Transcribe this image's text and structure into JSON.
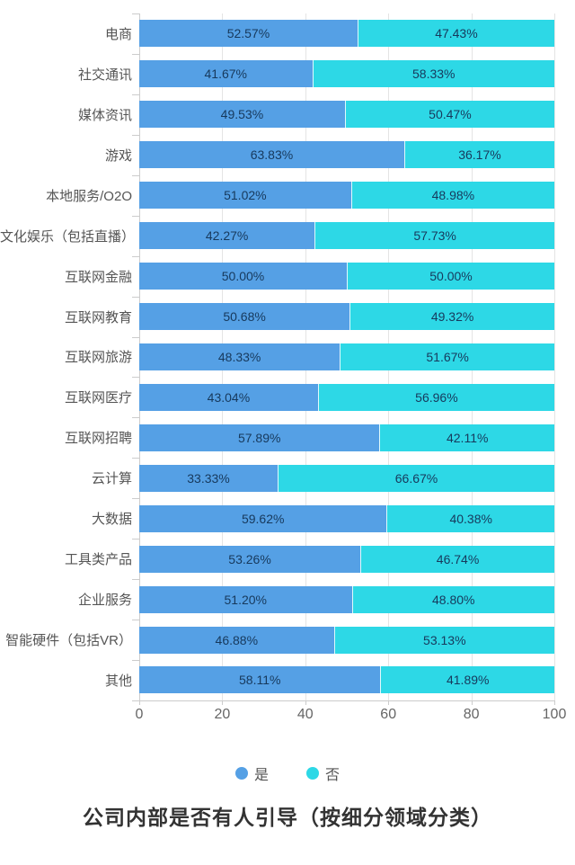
{
  "chart_data": {
    "type": "bar",
    "orientation": "horizontal",
    "stacked": true,
    "percent_stacked": true,
    "title": "公司内部是否有人引导（按细分领域分类）",
    "xlabel": "",
    "ylabel": "",
    "xlim": [
      0,
      100
    ],
    "x_ticks": [
      "0",
      "20",
      "40",
      "60",
      "80",
      "100"
    ],
    "grid": true,
    "legend_position": "bottom",
    "categories": [
      "电商",
      "社交通讯",
      "媒体资讯",
      "游戏",
      "本地服务/O2O",
      "文化娱乐（包括直播）",
      "互联网金融",
      "互联网教育",
      "互联网旅游",
      "互联网医疗",
      "互联网招聘",
      "云计算",
      "大数据",
      "工具类产品",
      "企业服务",
      "智能硬件（包括VR）",
      "其他"
    ],
    "series": [
      {
        "name": "是",
        "color": "#55a0e5",
        "values": [
          52.57,
          41.67,
          49.53,
          63.83,
          51.02,
          42.27,
          50.0,
          50.68,
          48.33,
          43.04,
          57.89,
          33.33,
          59.62,
          53.26,
          51.2,
          46.88,
          58.11
        ],
        "labels": [
          "52.57%",
          "41.67%",
          "49.53%",
          "63.83%",
          "51.02%",
          "42.27%",
          "50.00%",
          "50.68%",
          "48.33%",
          "43.04%",
          "57.89%",
          "33.33%",
          "59.62%",
          "53.26%",
          "51.20%",
          "46.88%",
          "58.11%"
        ]
      },
      {
        "name": "否",
        "color": "#2dd8e6",
        "values": [
          47.43,
          58.33,
          50.47,
          36.17,
          48.98,
          57.73,
          50.0,
          49.32,
          51.67,
          56.96,
          42.11,
          66.67,
          40.38,
          46.74,
          48.8,
          53.13,
          41.89
        ],
        "labels": [
          "47.43%",
          "58.33%",
          "50.47%",
          "36.17%",
          "48.98%",
          "57.73%",
          "50.00%",
          "49.32%",
          "51.67%",
          "56.96%",
          "42.11%",
          "66.67%",
          "40.38%",
          "46.74%",
          "48.80%",
          "53.13%",
          "41.89%"
        ]
      }
    ]
  }
}
